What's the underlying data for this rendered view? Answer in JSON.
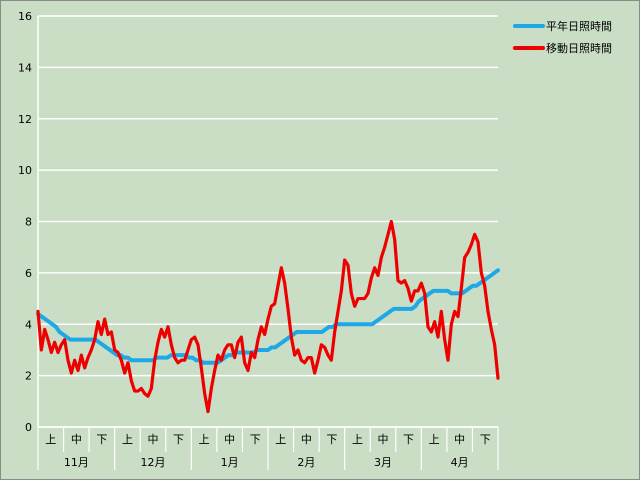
{
  "chart_data": {
    "type": "line",
    "ylim": [
      0,
      16
    ],
    "yticks": [
      0,
      2,
      4,
      6,
      8,
      10,
      12,
      14,
      16
    ],
    "grid": true,
    "legend_position": "top-right",
    "colors": {
      "background": "#c9dec5",
      "grid": "#ffffff",
      "normal": "#1ea8e6",
      "moving": "#ee0000"
    },
    "months": [
      "11月",
      "12月",
      "1月",
      "2月",
      "3月",
      "4月"
    ],
    "decades": [
      "上",
      "中",
      "下"
    ],
    "series": [
      {
        "name": "平年日照時間",
        "color": "#1ea8e6",
        "values": [
          4.4,
          4.3,
          4.2,
          4.1,
          4.0,
          3.9,
          3.7,
          3.6,
          3.5,
          3.4,
          3.4,
          3.4,
          3.4,
          3.4,
          3.4,
          3.4,
          3.4,
          3.3,
          3.2,
          3.1,
          3.0,
          2.9,
          2.8,
          2.8,
          2.7,
          2.7,
          2.6,
          2.6,
          2.6,
          2.6,
          2.6,
          2.6,
          2.6,
          2.7,
          2.7,
          2.7,
          2.7,
          2.8,
          2.8,
          2.8,
          2.8,
          2.8,
          2.7,
          2.7,
          2.6,
          2.6,
          2.5,
          2.5,
          2.5,
          2.5,
          2.5,
          2.6,
          2.7,
          2.8,
          2.8,
          2.9,
          2.9,
          2.9,
          2.9,
          2.9,
          2.9,
          3.0,
          3.0,
          3.0,
          3.0,
          3.1,
          3.1,
          3.2,
          3.3,
          3.4,
          3.5,
          3.6,
          3.7,
          3.7,
          3.7,
          3.7,
          3.7,
          3.7,
          3.7,
          3.7,
          3.8,
          3.9,
          3.9,
          4.0,
          4.0,
          4.0,
          4.0,
          4.0,
          4.0,
          4.0,
          4.0,
          4.0,
          4.0,
          4.0,
          4.1,
          4.2,
          4.3,
          4.4,
          4.5,
          4.6,
          4.6,
          4.6,
          4.6,
          4.6,
          4.6,
          4.7,
          4.9,
          5.0,
          5.1,
          5.2,
          5.3,
          5.3,
          5.3,
          5.3,
          5.3,
          5.2,
          5.2,
          5.2,
          5.2,
          5.3,
          5.4,
          5.5,
          5.5,
          5.6,
          5.7,
          5.8,
          5.9,
          6.0,
          6.1
        ]
      },
      {
        "name": "移動日照時間",
        "color": "#ee0000",
        "values": [
          4.5,
          3.0,
          3.8,
          3.4,
          2.9,
          3.3,
          2.9,
          3.2,
          3.4,
          2.6,
          2.1,
          2.6,
          2.2,
          2.8,
          2.3,
          2.7,
          3.0,
          3.4,
          4.1,
          3.6,
          4.2,
          3.6,
          3.7,
          3.0,
          2.9,
          2.6,
          2.1,
          2.5,
          1.8,
          1.4,
          1.4,
          1.5,
          1.3,
          1.2,
          1.5,
          2.6,
          3.3,
          3.8,
          3.5,
          3.9,
          3.2,
          2.7,
          2.5,
          2.6,
          2.6,
          3.0,
          3.4,
          3.5,
          3.2,
          2.3,
          1.3,
          0.6,
          1.5,
          2.2,
          2.8,
          2.6,
          3.0,
          3.2,
          3.2,
          2.7,
          3.3,
          3.5,
          2.5,
          2.2,
          2.9,
          2.7,
          3.4,
          3.9,
          3.6,
          4.2,
          4.7,
          4.8,
          5.5,
          6.2,
          5.6,
          4.6,
          3.5,
          2.8,
          3.0,
          2.6,
          2.5,
          2.7,
          2.7,
          2.1,
          2.6,
          3.2,
          3.1,
          2.8,
          2.6,
          3.7,
          4.5,
          5.3,
          6.5,
          6.3,
          5.2,
          4.7,
          5.0,
          5.0,
          5.0,
          5.2,
          5.8,
          6.2,
          5.9,
          6.6,
          7.0,
          7.5,
          8.0,
          7.3,
          5.7,
          5.6,
          5.7,
          5.4,
          4.9,
          5.3,
          5.3,
          5.6,
          5.2,
          3.9,
          3.7,
          4.1,
          3.5,
          4.5,
          3.4,
          2.6,
          4.0,
          4.5,
          4.3,
          5.4,
          6.6,
          6.8,
          7.1,
          7.5,
          7.2,
          6.0,
          5.5,
          4.5,
          3.8,
          3.2,
          1.9
        ]
      }
    ]
  }
}
